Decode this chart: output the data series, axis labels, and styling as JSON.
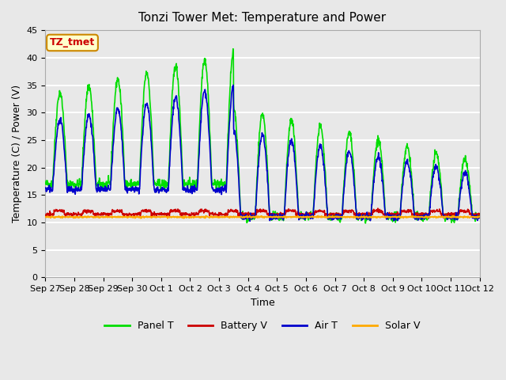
{
  "title": "Tonzi Tower Met: Temperature and Power",
  "xlabel": "Time",
  "ylabel": "Temperature (C) / Power (V)",
  "ylim": [
    0,
    45
  ],
  "yticks": [
    0,
    5,
    10,
    15,
    20,
    25,
    30,
    35,
    40,
    45
  ],
  "annotation_text": "TZ_tmet",
  "annotation_bg": "#ffffcc",
  "annotation_border": "#cc8800",
  "annotation_text_color": "#cc0000",
  "bg_color": "#e8e8e8",
  "grid_color": "#ffffff",
  "colors": {
    "Panel T": "#00dd00",
    "Battery V": "#cc0000",
    "Air T": "#0000cc",
    "Solar V": "#ffaa00"
  },
  "x_labels": [
    "Sep 27",
    "Sep 28",
    "Sep 29",
    "Sep 30",
    "Oct 1",
    "Oct 2",
    "Oct 3",
    "Oct 4",
    "Oct 5",
    "Oct 6",
    "Oct 7",
    "Oct 8",
    "Oct 9",
    "Oct 10",
    "Oct 11",
    "Oct 12"
  ],
  "n_days": 15
}
